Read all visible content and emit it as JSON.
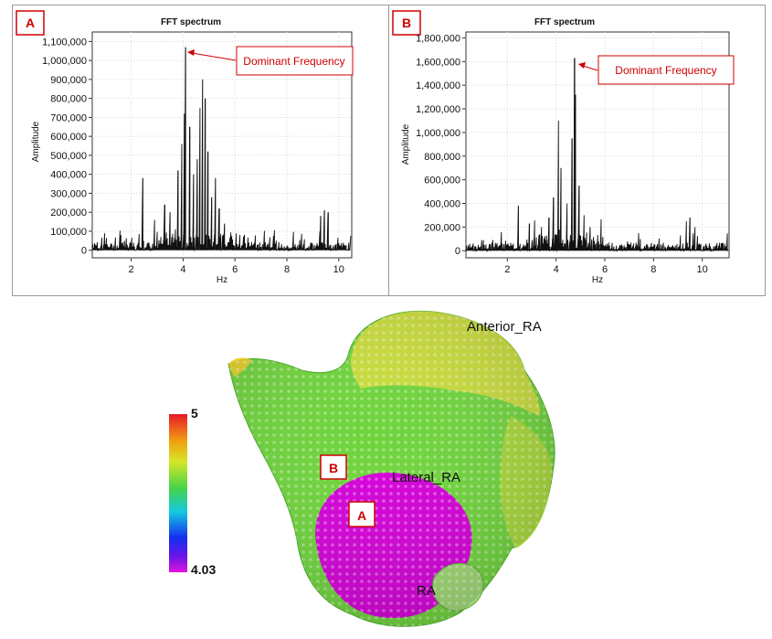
{
  "chart_data": [
    {
      "id": "A",
      "panel_label": "A",
      "type": "line",
      "title": "FFT spectrum",
      "xlabel": "Hz",
      "ylabel": "Amplitude",
      "xlim": [
        0.5,
        10.5
      ],
      "ylim": [
        -40000,
        1150000
      ],
      "xticks": [
        2,
        4,
        6,
        8,
        10
      ],
      "yticks": [
        0,
        100000,
        200000,
        300000,
        400000,
        500000,
        600000,
        700000,
        800000,
        900000,
        1000000,
        1100000
      ],
      "ytick_labels": [
        "0",
        "100,000",
        "200,000",
        "300,000",
        "400,000",
        "500,000",
        "600,000",
        "700,000",
        "800,000",
        "900,000",
        "1,000,000",
        "1,100,000"
      ],
      "peaks": [
        [
          2.45,
          380000
        ],
        [
          2.9,
          160000
        ],
        [
          3.3,
          240000
        ],
        [
          3.5,
          200000
        ],
        [
          3.8,
          420000
        ],
        [
          3.95,
          560000
        ],
        [
          4.05,
          720000
        ],
        [
          4.1,
          1070000
        ],
        [
          4.25,
          650000
        ],
        [
          4.4,
          400000
        ],
        [
          4.55,
          480000
        ],
        [
          4.65,
          750000
        ],
        [
          4.75,
          900000
        ],
        [
          4.85,
          800000
        ],
        [
          4.95,
          520000
        ],
        [
          5.1,
          280000
        ],
        [
          5.25,
          380000
        ],
        [
          5.4,
          220000
        ],
        [
          5.6,
          140000
        ],
        [
          9.3,
          180000
        ],
        [
          9.45,
          210000
        ],
        [
          9.6,
          200000
        ]
      ],
      "annotation": "Dominant Frequency",
      "annotation_peak": [
        4.1,
        1070000
      ]
    },
    {
      "id": "B",
      "panel_label": "B",
      "type": "line",
      "title": "FFT spectrum",
      "xlabel": "Hz",
      "ylabel": "Amplitude",
      "xlim": [
        0.3,
        11.1
      ],
      "ylim": [
        -60000,
        1850000
      ],
      "xticks": [
        2,
        4,
        6,
        8,
        10
      ],
      "yticks": [
        0,
        200000,
        400000,
        600000,
        800000,
        1000000,
        1200000,
        1400000,
        1600000,
        1800000
      ],
      "ytick_labels": [
        "0",
        "200,000",
        "400,000",
        "600,000",
        "800,000",
        "1,000,000",
        "1,200,000",
        "1,400,000",
        "1,600,000",
        "1,800,000"
      ],
      "peaks": [
        [
          2.45,
          380000
        ],
        [
          2.9,
          230000
        ],
        [
          3.4,
          200000
        ],
        [
          3.7,
          280000
        ],
        [
          3.9,
          450000
        ],
        [
          4.1,
          1100000
        ],
        [
          4.2,
          700000
        ],
        [
          4.45,
          400000
        ],
        [
          4.65,
          950000
        ],
        [
          4.75,
          1630000
        ],
        [
          4.8,
          1320000
        ],
        [
          4.95,
          550000
        ],
        [
          5.15,
          300000
        ],
        [
          5.4,
          200000
        ],
        [
          9.35,
          250000
        ],
        [
          9.5,
          280000
        ],
        [
          9.7,
          200000
        ]
      ],
      "annotation": "Dominant Frequency",
      "annotation_peak": [
        4.75,
        1630000
      ]
    }
  ],
  "map": {
    "labels": {
      "anterior": "Anterior_RA",
      "lateral": "Lateral_RA",
      "partial": "RA"
    },
    "markers": {
      "A": "A",
      "B": "B"
    }
  },
  "colorbar": {
    "max": "5",
    "min": "4.03"
  },
  "colors": {
    "accent_red": "#d00000",
    "spectrum": "#111111",
    "magenta": "#d400d8",
    "green": "#6ed63a",
    "yellow": "#d4e040"
  }
}
